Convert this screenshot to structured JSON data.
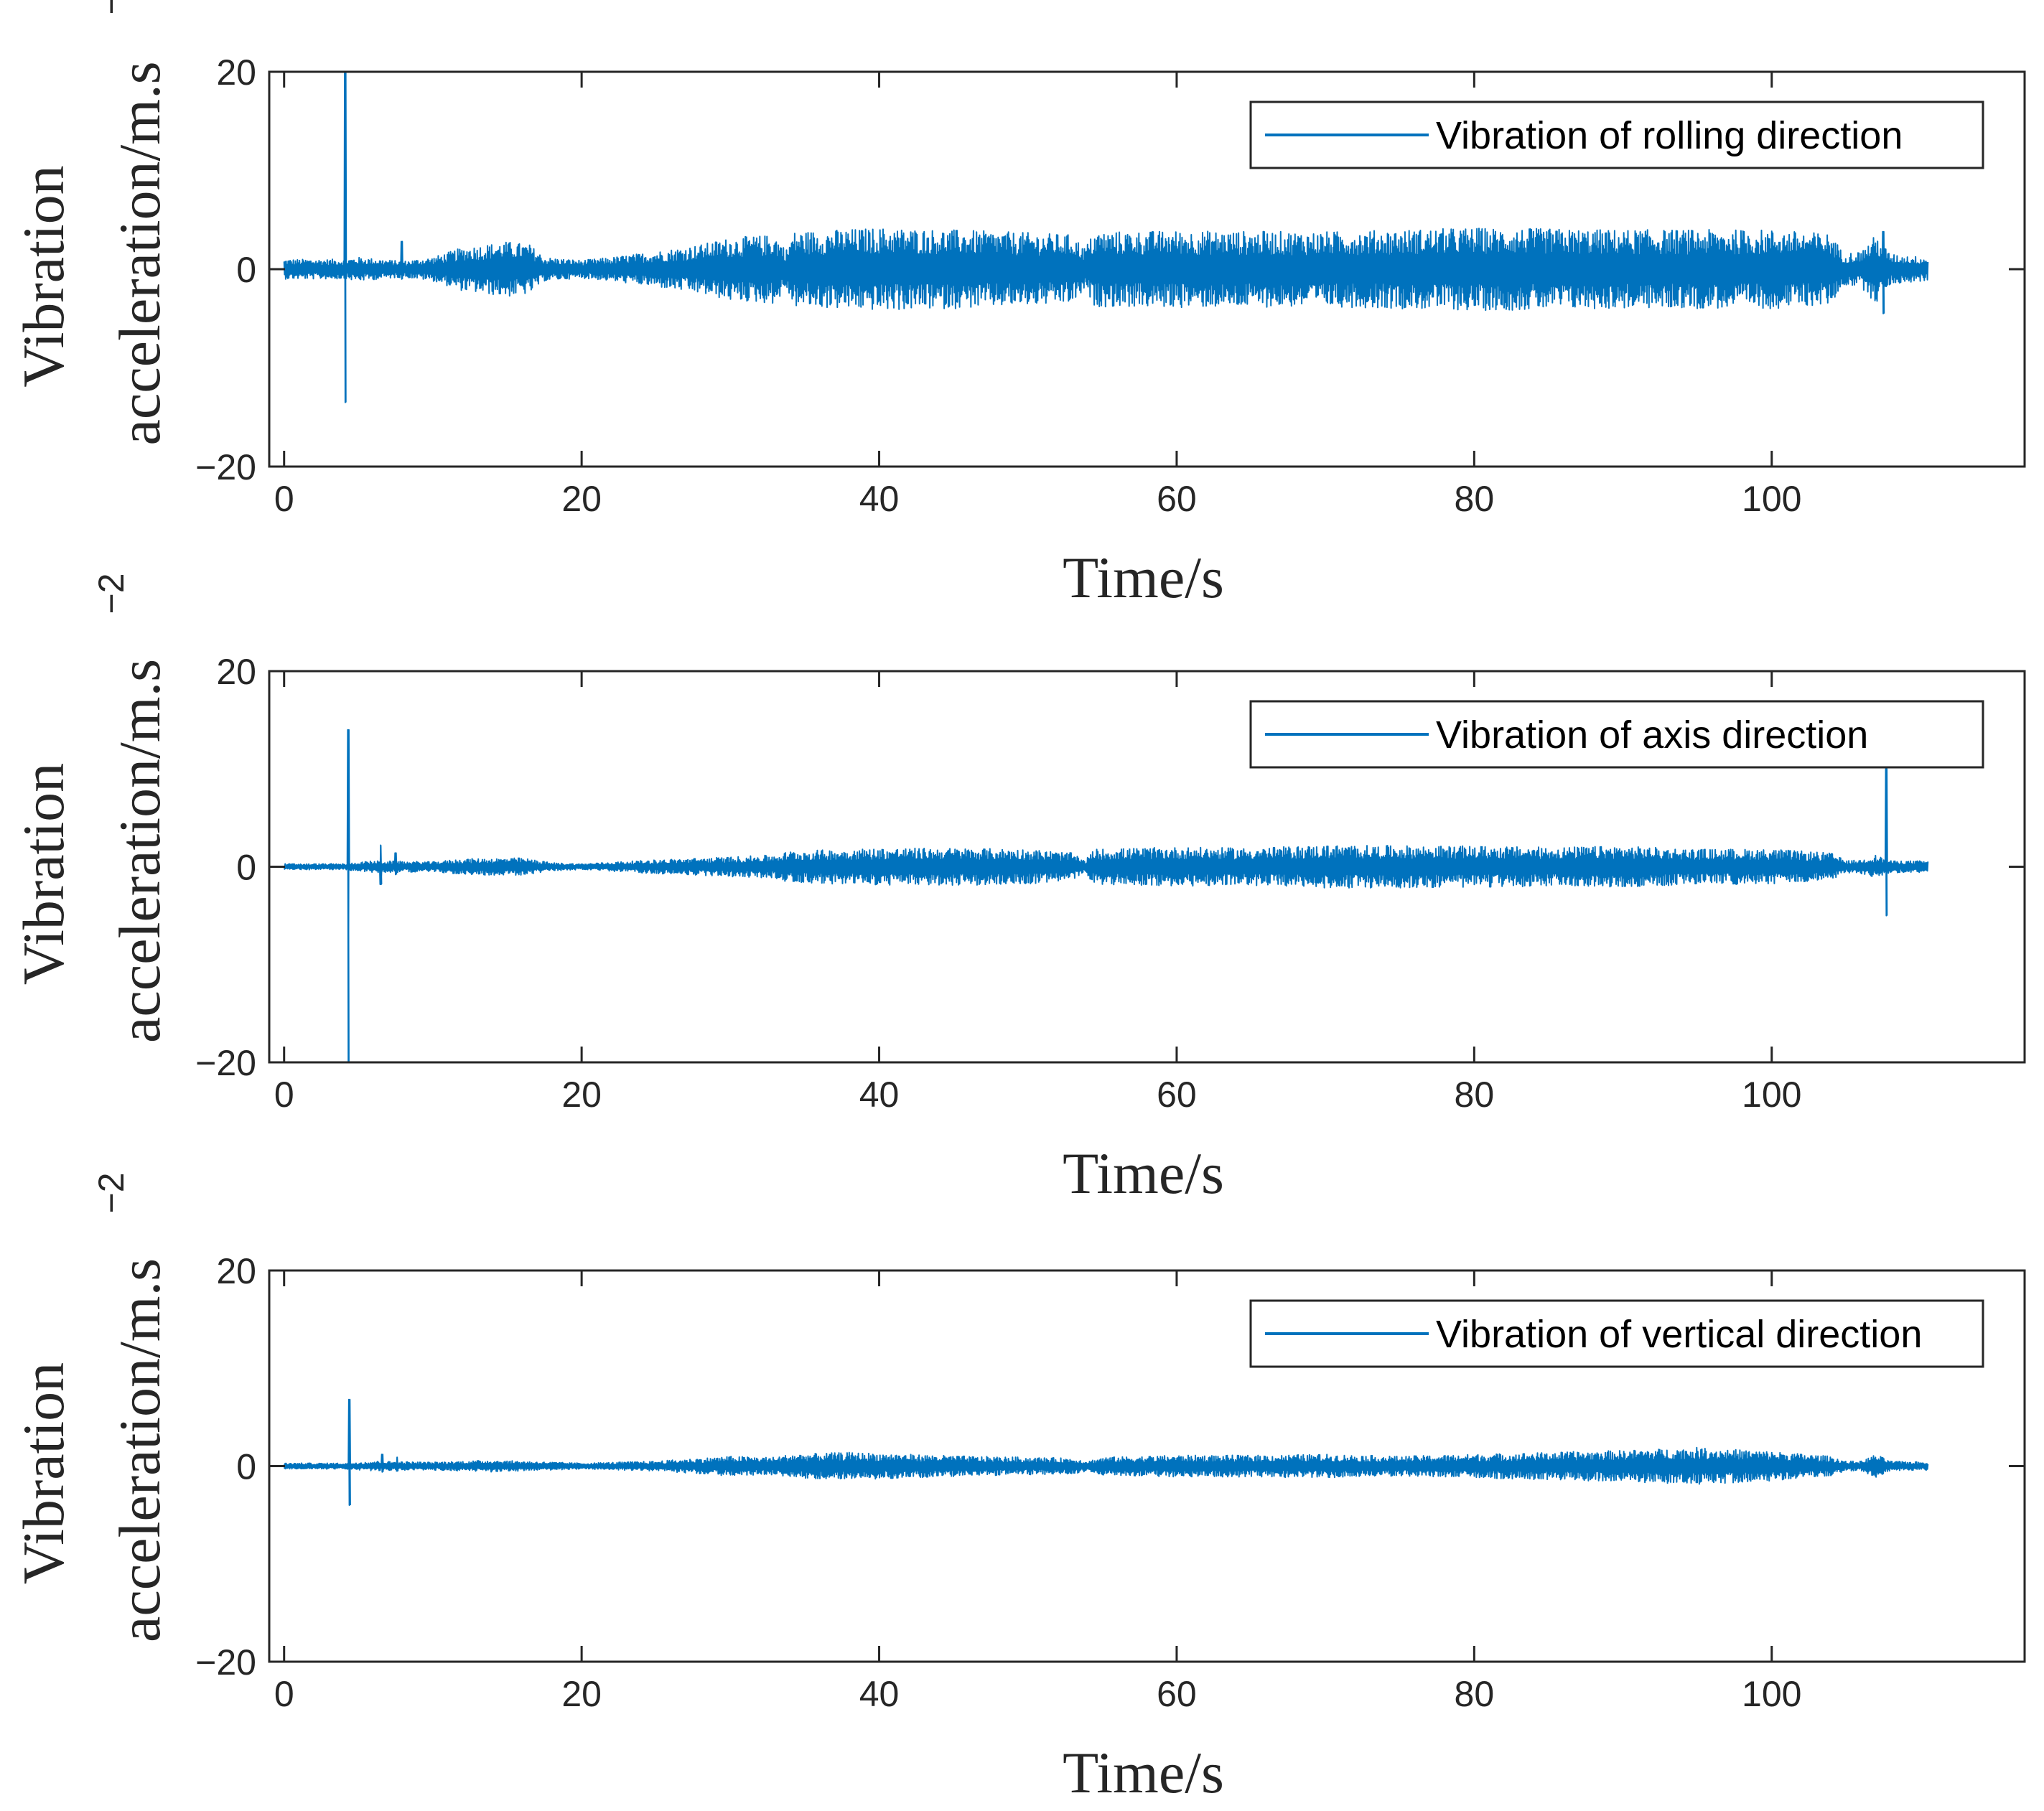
{
  "colors": {
    "series": "#0072BD",
    "axis": "#262626",
    "background": "#ffffff"
  },
  "chart_data": [
    {
      "type": "line",
      "name": "rolling",
      "xlabel": "Time/s",
      "ylabel_line1": "Vibration",
      "ylabel_line2": "acceleration/m.s",
      "ylabel_exponent": "−2",
      "xlim": [
        -1,
        117
      ],
      "ylim": [
        -20,
        20
      ],
      "xticks": [
        0,
        20,
        40,
        60,
        80,
        100
      ],
      "xtick_labels": [
        "0",
        "20",
        "40",
        "60",
        "80",
        "100"
      ],
      "yticks": [
        -20,
        0,
        20
      ],
      "ytick_labels": [
        "−20",
        "0",
        "20"
      ],
      "legend": "Vibration of rolling direction",
      "legend_position": "top-right",
      "series": [
        {
          "name": "Vibration of rolling direction",
          "duration": 110.5,
          "baseline_amplitude": 1.0,
          "envelope": [
            [
              0,
              1.0
            ],
            [
              4,
              1.0
            ],
            [
              5,
              1.2
            ],
            [
              8,
              0.8
            ],
            [
              10,
              1.2
            ],
            [
              12,
              2.2
            ],
            [
              15,
              2.8
            ],
            [
              16.5,
              2.5
            ],
            [
              17.5,
              1.2
            ],
            [
              20,
              0.9
            ],
            [
              22,
              1.2
            ],
            [
              25,
              1.8
            ],
            [
              28,
              2.5
            ],
            [
              30,
              3.2
            ],
            [
              33,
              3.5
            ],
            [
              33.8,
              2.0
            ],
            [
              34.2,
              3.8
            ],
            [
              40,
              4.2
            ],
            [
              45,
              4.0
            ],
            [
              50,
              3.7
            ],
            [
              53,
              3.5
            ],
            [
              53.8,
              2.2
            ],
            [
              54.5,
              3.8
            ],
            [
              60,
              3.9
            ],
            [
              70,
              3.8
            ],
            [
              80,
              4.2
            ],
            [
              90,
              4.0
            ],
            [
              100,
              4.0
            ],
            [
              104,
              3.6
            ],
            [
              104.8,
              1.6
            ],
            [
              106,
              1.8
            ],
            [
              107,
              3.5
            ],
            [
              108,
              1.5
            ],
            [
              110.5,
              1.2
            ]
          ],
          "spikes": [
            {
              "t": 4.1,
              "max": 20,
              "min": -13.5
            },
            {
              "t": 7.9,
              "max": 2.8,
              "min": -1.0
            },
            {
              "t": 107.5,
              "max": 3.8,
              "min": -4.5
            }
          ]
        }
      ]
    },
    {
      "type": "line",
      "name": "axis",
      "xlabel": "Time/s",
      "ylabel_line1": "Vibration",
      "ylabel_line2": "acceleration/m.s",
      "ylabel_exponent": "−2",
      "xlim": [
        -1,
        117
      ],
      "ylim": [
        -20,
        20
      ],
      "xticks": [
        0,
        20,
        40,
        60,
        80,
        100
      ],
      "xtick_labels": [
        "0",
        "20",
        "40",
        "60",
        "80",
        "100"
      ],
      "yticks": [
        -20,
        0,
        20
      ],
      "ytick_labels": [
        "−20",
        "0",
        "20"
      ],
      "legend": "Vibration of axis direction",
      "legend_position": "top-right",
      "series": [
        {
          "name": "Vibration of axis direction",
          "duration": 110.5,
          "baseline_amplitude": 0.4,
          "envelope": [
            [
              0,
              0.3
            ],
            [
              4,
              0.3
            ],
            [
              6,
              0.6
            ],
            [
              10,
              0.5
            ],
            [
              12,
              0.8
            ],
            [
              16,
              0.9
            ],
            [
              18,
              0.4
            ],
            [
              20,
              0.3
            ],
            [
              25,
              0.7
            ],
            [
              30,
              1.0
            ],
            [
              33,
              1.2
            ],
            [
              34,
              1.6
            ],
            [
              40,
              1.9
            ],
            [
              45,
              1.9
            ],
            [
              50,
              1.8
            ],
            [
              53,
              1.4
            ],
            [
              53.8,
              0.6
            ],
            [
              54.5,
              1.8
            ],
            [
              60,
              2.0
            ],
            [
              65,
              1.9
            ],
            [
              70,
              2.2
            ],
            [
              80,
              2.1
            ],
            [
              85,
              2.0
            ],
            [
              90,
              2.1
            ],
            [
              95,
              1.8
            ],
            [
              100,
              1.8
            ],
            [
              104,
              1.4
            ],
            [
              105,
              0.6
            ],
            [
              106,
              0.7
            ],
            [
              107,
              1.2
            ],
            [
              108,
              0.6
            ],
            [
              110.5,
              0.6
            ]
          ],
          "spikes": [
            {
              "t": 4.3,
              "max": 14,
              "min": -20
            },
            {
              "t": 6.5,
              "max": 2.2,
              "min": -1.8
            },
            {
              "t": 7.5,
              "max": 1.4,
              "min": -0.8
            },
            {
              "t": 107.7,
              "max": 10,
              "min": -5.0
            }
          ]
        }
      ]
    },
    {
      "type": "line",
      "name": "vertical",
      "xlabel": "Time/s",
      "ylabel_line1": "Vibration",
      "ylabel_line2": "acceleration/m.s",
      "ylabel_exponent": "−2",
      "xlim": [
        -1,
        117
      ],
      "ylim": [
        -20,
        20
      ],
      "xticks": [
        0,
        20,
        40,
        60,
        80,
        100
      ],
      "xtick_labels": [
        "0",
        "20",
        "40",
        "60",
        "80",
        "100"
      ],
      "yticks": [
        -20,
        0,
        20
      ],
      "ytick_labels": [
        "−20",
        "0",
        "20"
      ],
      "legend": "Vibration of vertical direction",
      "legend_position": "top-right",
      "series": [
        {
          "name": "Vibration of vertical direction",
          "duration": 110.5,
          "baseline_amplitude": 0.3,
          "envelope": [
            [
              0,
              0.3
            ],
            [
              4,
              0.3
            ],
            [
              6,
              0.5
            ],
            [
              10,
              0.4
            ],
            [
              14,
              0.6
            ],
            [
              18,
              0.4
            ],
            [
              20,
              0.3
            ],
            [
              25,
              0.5
            ],
            [
              28,
              0.8
            ],
            [
              30,
              1.0
            ],
            [
              33,
              0.9
            ],
            [
              34,
              1.2
            ],
            [
              38,
              1.4
            ],
            [
              42,
              1.2
            ],
            [
              46,
              1.0
            ],
            [
              50,
              0.9
            ],
            [
              53,
              0.8
            ],
            [
              54,
              0.5
            ],
            [
              55,
              0.9
            ],
            [
              60,
              1.1
            ],
            [
              65,
              1.1
            ],
            [
              70,
              1.2
            ],
            [
              75,
              1.0
            ],
            [
              80,
              1.2
            ],
            [
              85,
              1.4
            ],
            [
              90,
              1.6
            ],
            [
              95,
              1.9
            ],
            [
              100,
              1.5
            ],
            [
              104,
              1.0
            ],
            [
              105,
              0.5
            ],
            [
              106,
              0.5
            ],
            [
              107,
              1.2
            ],
            [
              108,
              0.5
            ],
            [
              110.5,
              0.4
            ]
          ],
          "spikes": [
            {
              "t": 4.4,
              "max": 6.8,
              "min": -4.0
            },
            {
              "t": 6.6,
              "max": 1.2,
              "min": -0.6
            },
            {
              "t": 7.6,
              "max": 0.9,
              "min": -0.5
            }
          ]
        }
      ]
    }
  ]
}
